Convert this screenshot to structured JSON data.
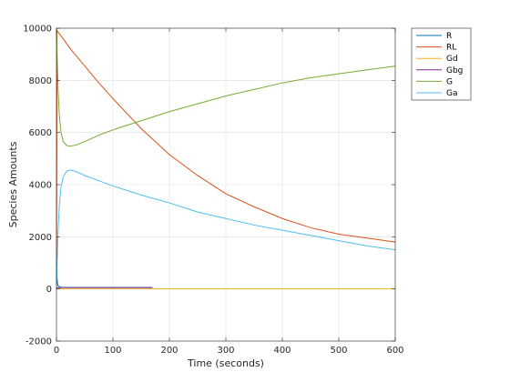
{
  "chart_data": {
    "type": "line",
    "xlabel": "Time (seconds)",
    "ylabel": "Species Amounts",
    "xlim": [
      0,
      600
    ],
    "ylim": [
      -2000,
      10000
    ],
    "xticks": [
      "0",
      "100",
      "200",
      "300",
      "400",
      "500",
      "600"
    ],
    "yticks": [
      "-2000",
      "0",
      "2000",
      "4000",
      "6000",
      "8000",
      "10000"
    ],
    "grid": true,
    "legend_position": "top-right outside",
    "series": [
      {
        "name": "R",
        "color": "#0072BD",
        "x": [
          0,
          0.2,
          0.5,
          1,
          2,
          3,
          5,
          10,
          50,
          100,
          170
        ],
        "y": [
          0,
          1000,
          700,
          400,
          200,
          120,
          80,
          60,
          60,
          60,
          60
        ]
      },
      {
        "name": "RL",
        "color": "#D95319",
        "x": [
          0,
          1,
          3,
          10,
          25,
          50,
          75,
          100,
          150,
          200,
          250,
          300,
          350,
          400,
          450,
          500,
          550,
          600
        ],
        "y": [
          0,
          9900,
          9850,
          9650,
          9200,
          8550,
          7900,
          7300,
          6150,
          5150,
          4350,
          3650,
          3150,
          2700,
          2350,
          2100,
          1950,
          1800
        ]
      },
      {
        "name": "Gd",
        "color": "#EDB120",
        "x": [
          0,
          100,
          200,
          300,
          400,
          500,
          600
        ],
        "y": [
          0,
          0,
          0,
          0,
          0,
          0,
          0
        ]
      },
      {
        "name": "Gbg",
        "color": "#7E2F8E",
        "x": [
          0,
          1,
          5,
          10,
          20,
          50,
          100,
          170
        ],
        "y": [
          0,
          50,
          50,
          50,
          50,
          50,
          50,
          50
        ]
      },
      {
        "name": "G",
        "color": "#77AC30",
        "x": [
          0,
          1,
          3,
          5,
          8,
          12,
          18,
          25,
          35,
          50,
          75,
          100,
          150,
          200,
          250,
          300,
          350,
          400,
          450,
          500,
          550,
          600
        ],
        "y": [
          10000,
          9100,
          7600,
          6700,
          6000,
          5650,
          5500,
          5480,
          5520,
          5650,
          5900,
          6100,
          6450,
          6800,
          7100,
          7400,
          7650,
          7900,
          8100,
          8250,
          8400,
          8550
        ]
      },
      {
        "name": "Ga",
        "color": "#4DBEEE",
        "x": [
          0,
          1,
          3,
          5,
          8,
          12,
          18,
          25,
          35,
          50,
          75,
          100,
          150,
          200,
          250,
          300,
          350,
          400,
          450,
          500,
          550,
          600
        ],
        "y": [
          0,
          900,
          2300,
          3200,
          3900,
          4300,
          4520,
          4560,
          4500,
          4350,
          4150,
          3950,
          3600,
          3300,
          2950,
          2700,
          2450,
          2250,
          2050,
          1850,
          1650,
          1500
        ]
      }
    ]
  }
}
